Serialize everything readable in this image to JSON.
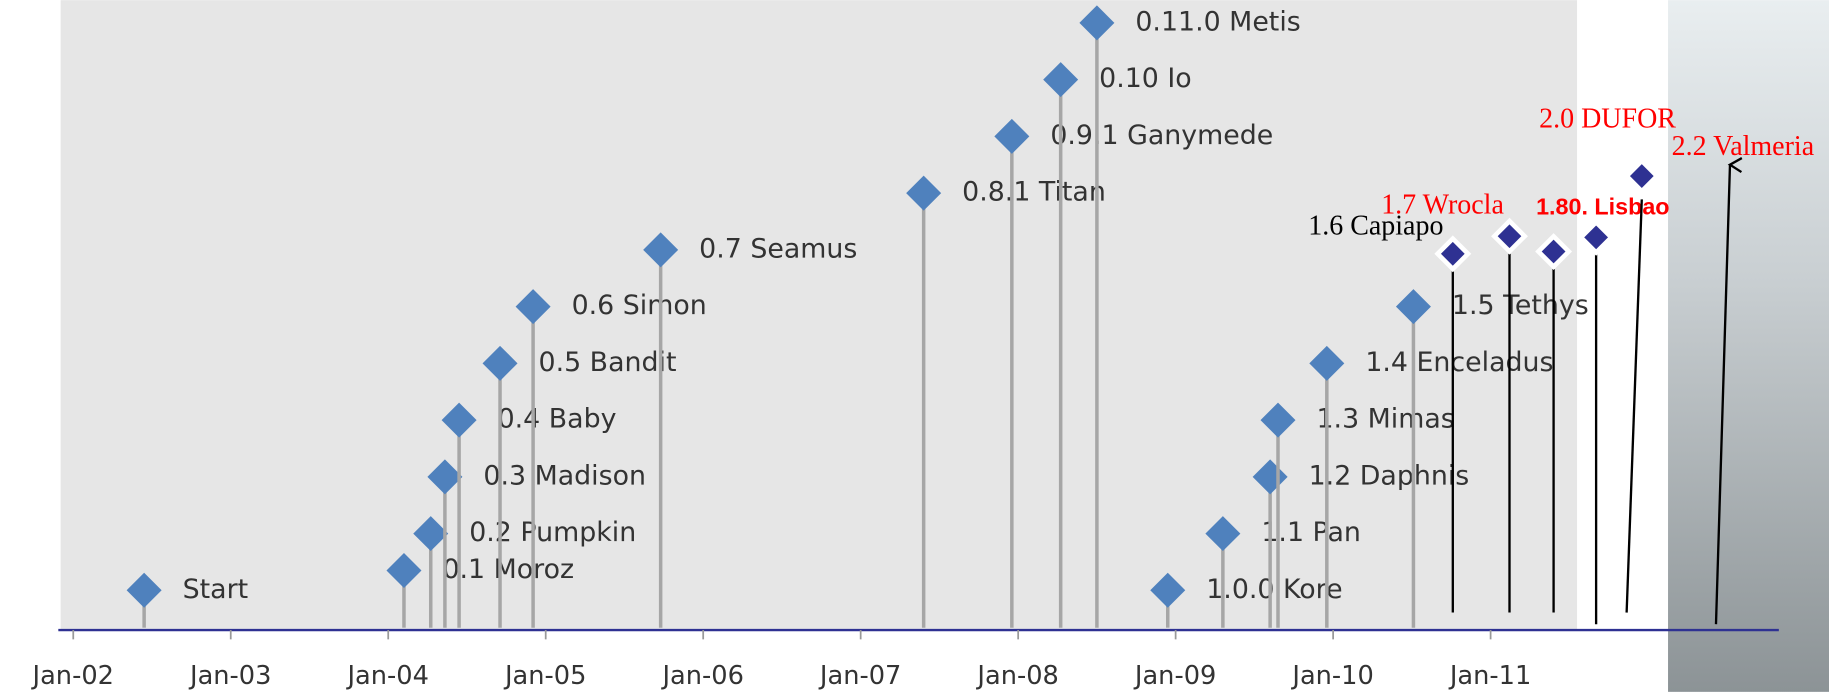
{
  "chart_data": {
    "type": "timeline",
    "xlim": [
      2001.92,
      2011.66
    ],
    "ylim": [
      0,
      11.1
    ],
    "xticks": [
      {
        "value": 2002,
        "label": "Jan-02"
      },
      {
        "value": 2003,
        "label": "Jan-03"
      },
      {
        "value": 2004,
        "label": "Jan-04"
      },
      {
        "value": 2005,
        "label": "Jan-05"
      },
      {
        "value": 2006,
        "label": "Jan-06"
      },
      {
        "value": 2007,
        "label": "Jan-07"
      },
      {
        "value": 2008,
        "label": "Jan-08"
      },
      {
        "value": 2009,
        "label": "Jan-09"
      },
      {
        "value": 2010,
        "label": "Jan-10"
      },
      {
        "value": 2011,
        "label": "Jan-11"
      }
    ],
    "releases": [
      {
        "name": "Start",
        "x": 2002.45,
        "y": 0.7,
        "color": "#4f81bd"
      },
      {
        "name": "0.1 Moroz",
        "x": 2004.1,
        "y": 1.05,
        "color": "#4f81bd"
      },
      {
        "name": "0.2 Pumpkin",
        "x": 2004.27,
        "y": 1.7,
        "color": "#4f81bd"
      },
      {
        "name": "0.3 Madison",
        "x": 2004.36,
        "y": 2.7,
        "color": "#4f81bd"
      },
      {
        "name": "0.4 Baby",
        "x": 2004.45,
        "y": 3.7,
        "color": "#4f81bd"
      },
      {
        "name": "0.5 Bandit",
        "x": 2004.71,
        "y": 4.7,
        "color": "#4f81bd"
      },
      {
        "name": "0.6 Simon",
        "x": 2004.92,
        "y": 5.7,
        "color": "#4f81bd"
      },
      {
        "name": "0.7 Seamus",
        "x": 2005.73,
        "y": 6.7,
        "color": "#4f81bd"
      },
      {
        "name": "0.8.1 Titan",
        "x": 2007.4,
        "y": 7.7,
        "color": "#4f81bd"
      },
      {
        "name": "0.9.1 Ganymede",
        "x": 2007.96,
        "y": 8.7,
        "color": "#4f81bd"
      },
      {
        "name": "0.10 Io",
        "x": 2008.27,
        "y": 9.7,
        "color": "#4f81bd"
      },
      {
        "name": "0.11.0 Metis",
        "x": 2008.5,
        "y": 10.7,
        "color": "#4f81bd"
      },
      {
        "name": "1.0.0 Kore",
        "x": 2008.95,
        "y": 0.7,
        "color": "#4f81bd"
      },
      {
        "name": "1.1 Pan",
        "x": 2009.3,
        "y": 1.7,
        "color": "#4f81bd"
      },
      {
        "name": "1.2 Daphnis",
        "x": 2009.6,
        "y": 2.7,
        "color": "#4f81bd"
      },
      {
        "name": "1.3 Mimas",
        "x": 2009.65,
        "y": 3.7,
        "color": "#4f81bd"
      },
      {
        "name": "1.4 Enceladus",
        "x": 2009.96,
        "y": 4.7,
        "color": "#4f81bd"
      },
      {
        "name": "1.5 Tethys",
        "x": 2010.51,
        "y": 5.7,
        "color": "#4f81bd"
      },
      {
        "name": "1.6 Capiapo",
        "x": 2010.76,
        "y": 6.63,
        "color": "#2e3192",
        "label_color": "#000000"
      },
      {
        "name": "1.7 Wrocla",
        "x": 2011.12,
        "y": 6.94,
        "color": "#2e3192",
        "label_color": "#ff0000"
      },
      {
        "name": "1.80. Lisbao",
        "x": 2011.4,
        "y": 6.67,
        "color": "#2e3192",
        "label_color": "#ff0000"
      },
      {
        "name": null,
        "x": 2011.67,
        "y": 6.92,
        "color": "#2e3192"
      },
      {
        "name": "2.0 DUFOR",
        "x": 2011.96,
        "y": 8.0,
        "color": "#2e3192",
        "label_color": "#ff0000"
      },
      {
        "name": "2.2 Valmeria",
        "x": 2012.52,
        "y": 8.2,
        "color": "#000000",
        "label_color": "#ff0000",
        "marker": "arrow"
      }
    ]
  }
}
